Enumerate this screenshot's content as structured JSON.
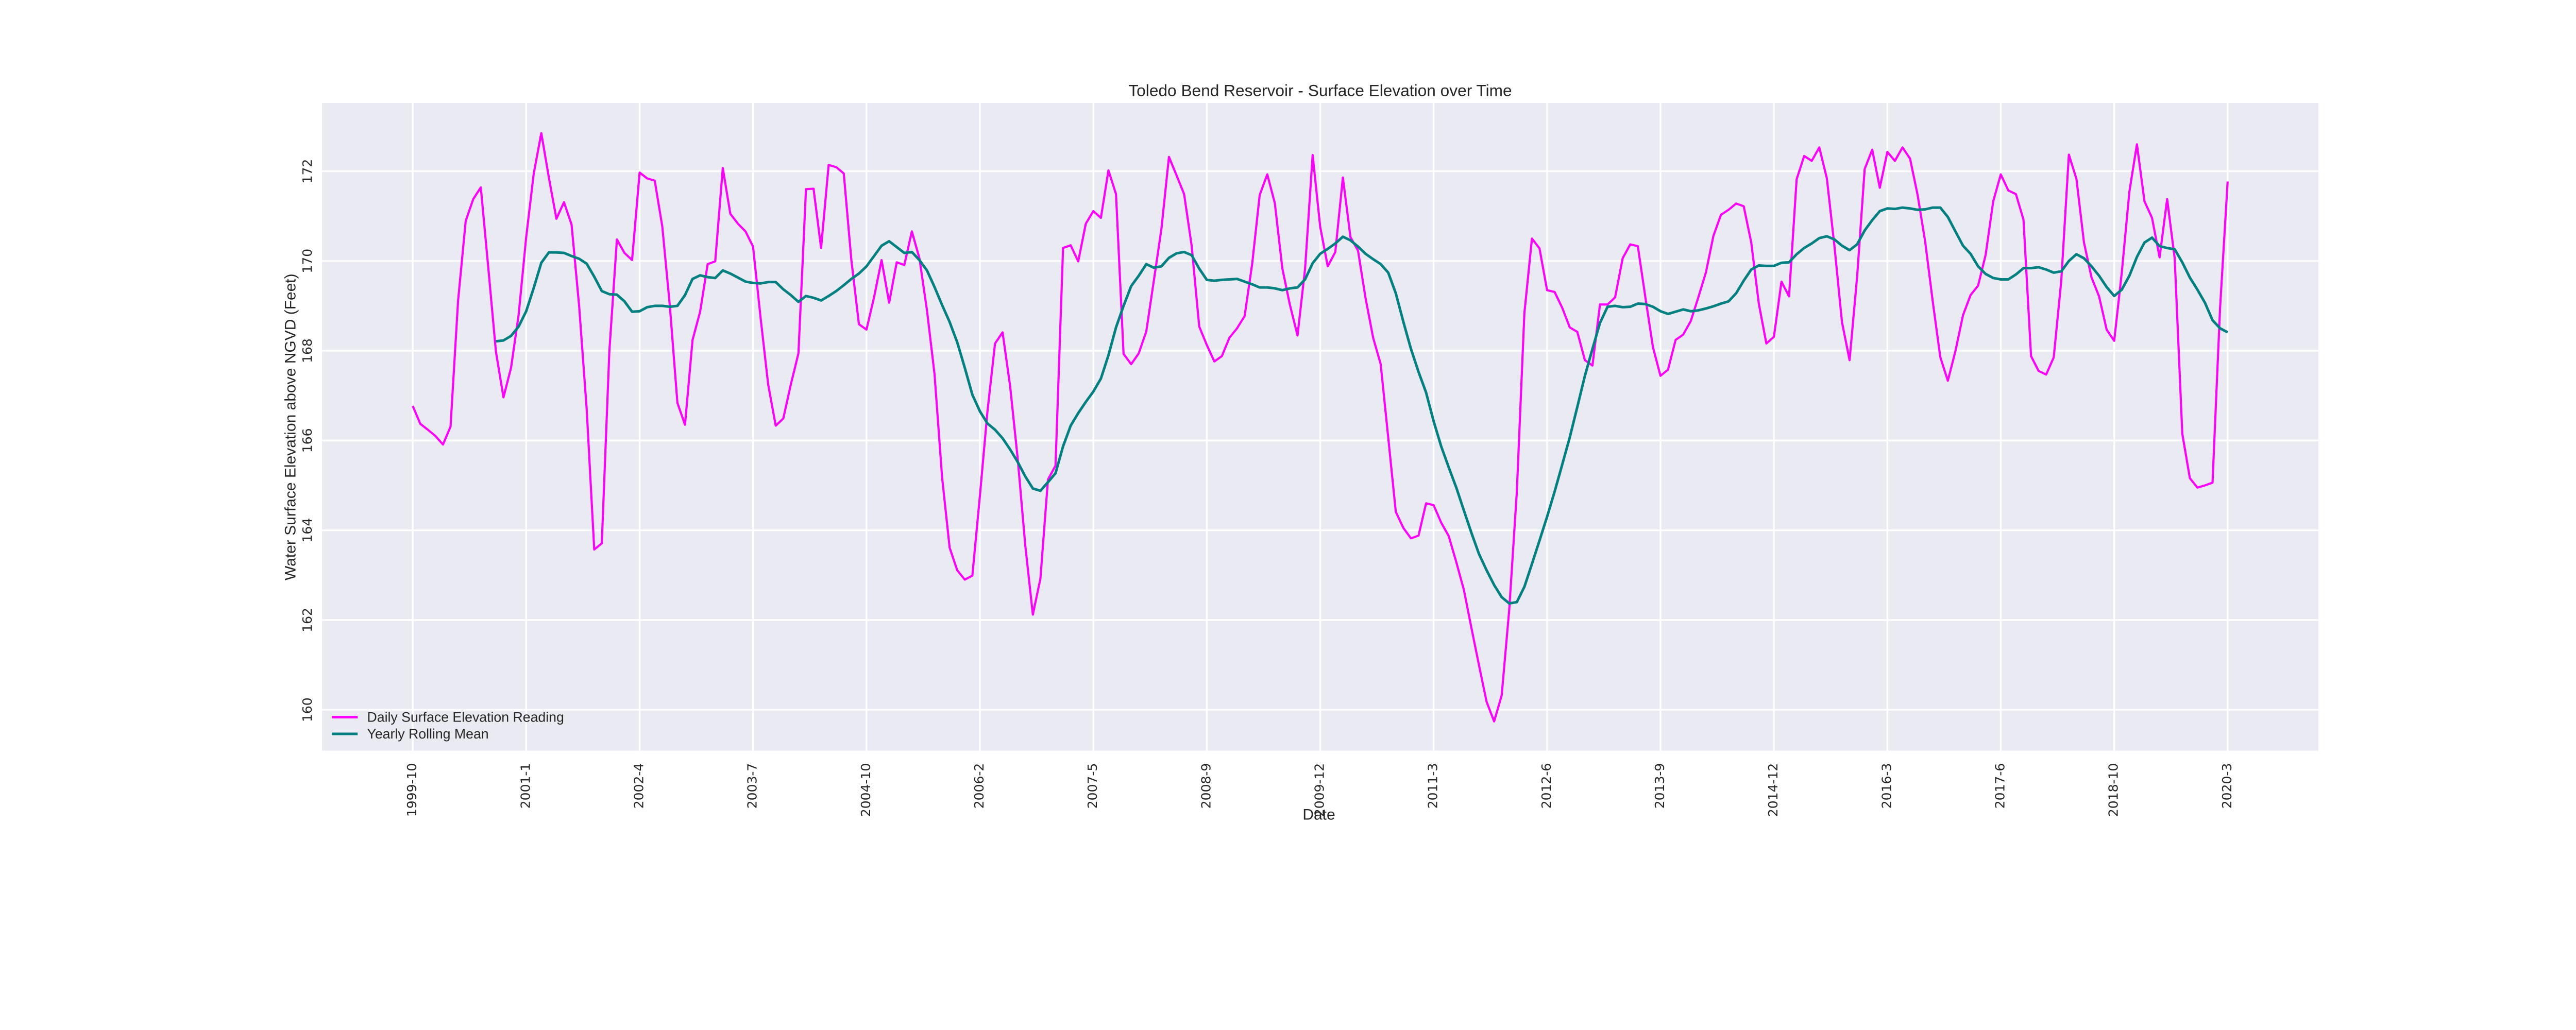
{
  "chart_data": {
    "type": "line",
    "title": "Toledo Bend Reservoir - Surface Elevation over Time",
    "xlabel": "Date",
    "ylabel": "Water Surface Elevation above NGVD (Feet)",
    "ylim": [
      159.09,
      173.52
    ],
    "xlim": [
      -12,
      252
    ],
    "y_ticks": [
      160,
      162,
      164,
      166,
      168,
      170,
      172
    ],
    "x_ticks": [
      {
        "index": 0,
        "label": "1999-10"
      },
      {
        "index": 15,
        "label": "2001-1"
      },
      {
        "index": 30,
        "label": "2002-4"
      },
      {
        "index": 45,
        "label": "2003-7"
      },
      {
        "index": 60,
        "label": "2004-10"
      },
      {
        "index": 75,
        "label": "2006-2"
      },
      {
        "index": 90,
        "label": "2007-5"
      },
      {
        "index": 105,
        "label": "2008-9"
      },
      {
        "index": 120,
        "label": "2009-12"
      },
      {
        "index": 135,
        "label": "2011-3"
      },
      {
        "index": 150,
        "label": "2012-6"
      },
      {
        "index": 165,
        "label": "2013-9"
      },
      {
        "index": 180,
        "label": "2014-12"
      },
      {
        "index": 195,
        "label": "2016-3"
      },
      {
        "index": 210,
        "label": "2017-6"
      },
      {
        "index": 225,
        "label": "2018-10"
      },
      {
        "index": 240,
        "label": "2020-3"
      }
    ],
    "grid": true,
    "background": "#eaeaf2",
    "legend_position": "lower-left",
    "series": [
      {
        "name": "Daily Surface Elevation Reading",
        "color": "#ff00ff",
        "values": [
          166.77,
          166.37,
          166.24,
          166.1,
          165.91,
          166.31,
          169.12,
          170.89,
          171.38,
          171.64,
          169.83,
          167.98,
          166.96,
          167.62,
          168.8,
          170.53,
          171.95,
          172.85,
          171.86,
          170.94,
          171.31,
          170.81,
          169.0,
          166.7,
          163.57,
          163.71,
          167.99,
          170.48,
          170.18,
          170.02,
          171.97,
          171.84,
          171.79,
          170.77,
          169.0,
          166.84,
          166.35,
          168.24,
          168.87,
          169.93,
          169.99,
          172.07,
          171.05,
          170.83,
          170.66,
          170.32,
          168.73,
          167.25,
          166.33,
          166.49,
          167.25,
          167.94,
          171.6,
          171.61,
          170.29,
          172.14,
          172.09,
          171.95,
          170.02,
          168.59,
          168.47,
          169.19,
          170.02,
          169.07,
          169.97,
          169.91,
          170.66,
          170.06,
          168.9,
          167.48,
          165.18,
          163.61,
          163.11,
          162.9,
          162.99,
          164.77,
          166.65,
          168.16,
          168.41,
          167.21,
          165.59,
          163.66,
          162.12,
          162.92,
          165.13,
          165.44,
          170.29,
          170.35,
          169.99,
          170.83,
          171.11,
          170.96,
          172.02,
          171.49,
          167.93,
          167.7,
          167.94,
          168.43,
          169.56,
          170.71,
          172.32,
          171.91,
          171.49,
          170.34,
          168.54,
          168.13,
          167.76,
          167.88,
          168.29,
          168.5,
          168.77,
          169.93,
          171.47,
          171.93,
          171.29,
          169.83,
          169.02,
          168.34,
          169.83,
          172.36,
          170.76,
          169.88,
          170.2,
          171.86,
          170.53,
          170.23,
          169.17,
          168.29,
          167.7,
          166.06,
          164.41,
          164.05,
          163.82,
          163.88,
          164.6,
          164.56,
          164.17,
          163.87,
          163.29,
          162.67,
          161.82,
          160.99,
          160.18,
          159.74,
          160.32,
          162.23,
          164.86,
          168.84,
          170.5,
          170.28,
          169.35,
          169.31,
          168.96,
          168.52,
          168.42,
          167.79,
          167.67,
          169.03,
          169.03,
          169.19,
          170.06,
          170.37,
          170.33,
          169.19,
          168.08,
          167.44,
          167.58,
          168.24,
          168.36,
          168.66,
          169.19,
          169.74,
          170.56,
          171.03,
          171.14,
          171.28,
          171.22,
          170.41,
          169.05,
          168.16,
          168.31,
          169.54,
          169.21,
          171.82,
          172.34,
          172.23,
          172.53,
          171.84,
          170.34,
          168.64,
          167.79,
          169.65,
          172.05,
          172.48,
          171.63,
          172.43,
          172.23,
          172.53,
          172.28,
          171.47,
          170.43,
          169.1,
          167.86,
          167.33,
          167.99,
          168.79,
          169.24,
          169.45,
          170.14,
          171.33,
          171.93,
          171.57,
          171.49,
          170.92,
          167.88,
          167.55,
          167.47,
          167.85,
          169.56,
          172.37,
          171.83,
          170.41,
          169.63,
          169.21,
          168.47,
          168.22,
          169.74,
          171.54,
          172.6,
          171.33,
          170.96,
          170.08,
          171.38,
          170.06,
          166.15,
          165.16,
          164.95,
          165.0,
          165.06,
          168.96,
          171.77
        ]
      },
      {
        "name": "Yearly Rolling Mean",
        "color": "#008080",
        "values": [
          null,
          null,
          null,
          null,
          null,
          null,
          null,
          null,
          null,
          null,
          null,
          168.21,
          168.23,
          168.33,
          168.54,
          168.88,
          169.4,
          169.96,
          170.19,
          170.19,
          170.18,
          170.11,
          170.05,
          169.94,
          169.65,
          169.33,
          169.26,
          169.25,
          169.1,
          168.87,
          168.88,
          168.97,
          169.0,
          169.0,
          168.98,
          169.0,
          169.24,
          169.6,
          169.68,
          169.64,
          169.62,
          169.79,
          169.72,
          169.63,
          169.54,
          169.51,
          169.5,
          169.53,
          169.53,
          169.37,
          169.24,
          169.09,
          169.22,
          169.18,
          169.12,
          169.22,
          169.33,
          169.46,
          169.6,
          169.72,
          169.88,
          170.11,
          170.34,
          170.44,
          170.31,
          170.18,
          170.2,
          170.02,
          169.79,
          169.42,
          169.02,
          168.64,
          168.19,
          167.62,
          167.02,
          166.65,
          166.38,
          166.24,
          166.05,
          165.8,
          165.52,
          165.2,
          164.93,
          164.88,
          165.07,
          165.27,
          165.87,
          166.33,
          166.61,
          166.86,
          167.09,
          167.38,
          167.9,
          168.52,
          169.0,
          169.44,
          169.67,
          169.93,
          169.85,
          169.88,
          170.07,
          170.17,
          170.2,
          170.13,
          169.83,
          169.58,
          169.56,
          169.58,
          169.59,
          169.6,
          169.54,
          169.48,
          169.41,
          169.41,
          169.39,
          169.35,
          169.39,
          169.41,
          169.59,
          169.95,
          170.16,
          170.27,
          170.39,
          170.54,
          170.46,
          170.32,
          170.16,
          170.04,
          169.93,
          169.74,
          169.28,
          168.64,
          168.04,
          167.53,
          167.07,
          166.43,
          165.87,
          165.4,
          164.95,
          164.44,
          163.94,
          163.47,
          163.11,
          162.78,
          162.51,
          162.37,
          162.4,
          162.74,
          163.25,
          163.77,
          164.3,
          164.86,
          165.46,
          166.07,
          166.75,
          167.44,
          168.04,
          168.62,
          168.98,
          169.0,
          168.97,
          168.98,
          169.05,
          169.04,
          168.98,
          168.88,
          168.82,
          168.87,
          168.92,
          168.88,
          168.9,
          168.94,
          168.99,
          169.05,
          169.1,
          169.28,
          169.56,
          169.81,
          169.9,
          169.89,
          169.89,
          169.96,
          169.97,
          170.15,
          170.29,
          170.39,
          170.51,
          170.55,
          170.48,
          170.34,
          170.24,
          170.37,
          170.68,
          170.91,
          171.11,
          171.17,
          171.16,
          171.19,
          171.17,
          171.14,
          171.15,
          171.19,
          171.19,
          170.98,
          170.66,
          170.34,
          170.16,
          169.88,
          169.71,
          169.62,
          169.59,
          169.59,
          169.7,
          169.84,
          169.84,
          169.86,
          169.81,
          169.74,
          169.77,
          170.0,
          170.15,
          170.06,
          169.88,
          169.67,
          169.42,
          169.22,
          169.36,
          169.67,
          170.09,
          170.41,
          170.52,
          170.33,
          170.29,
          170.26,
          169.97,
          169.63,
          169.36,
          169.07,
          168.68,
          168.5,
          168.41
        ]
      }
    ]
  }
}
